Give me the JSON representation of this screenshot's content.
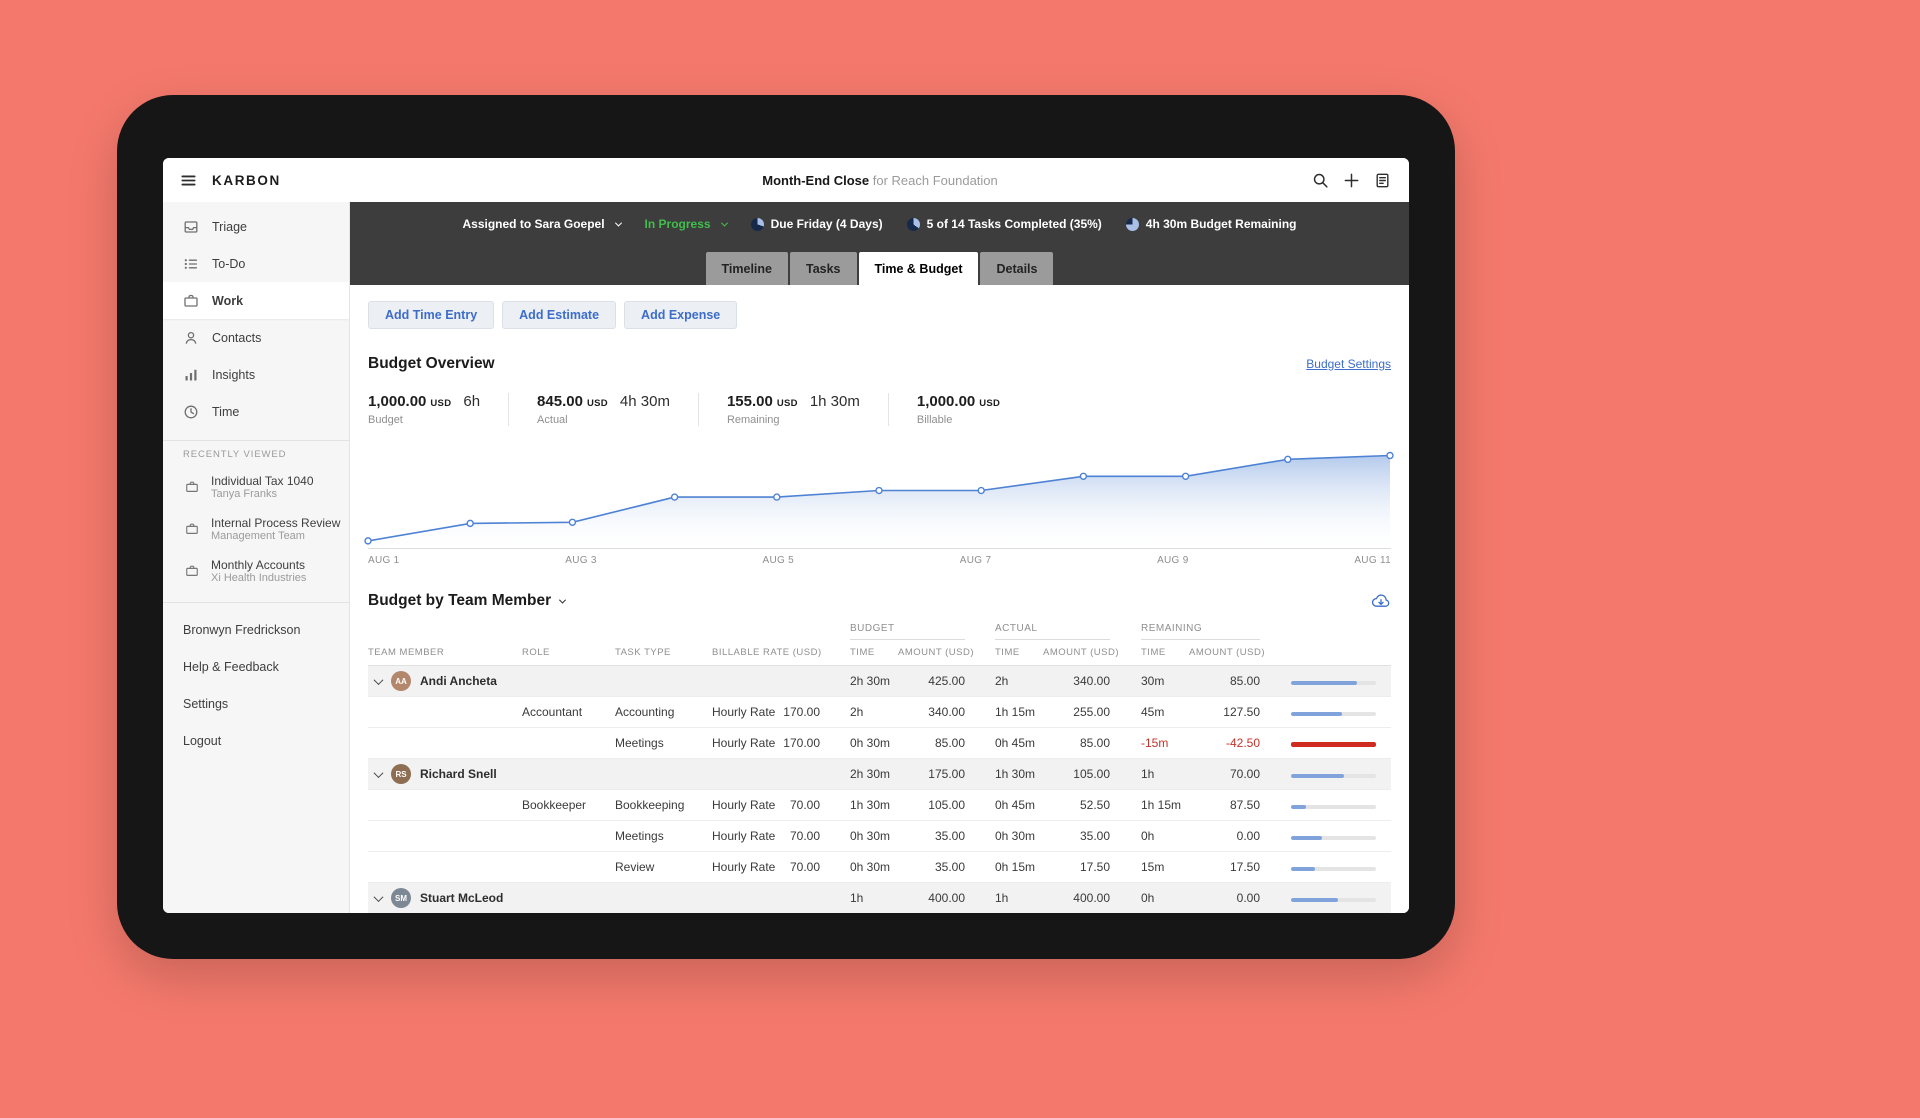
{
  "topbar": {
    "logo": "KARBON",
    "title_bold": "Month-End Close",
    "title_rest": " for Reach Foundation"
  },
  "sidebar": {
    "items": [
      {
        "label": "Triage",
        "icon": "triage-icon",
        "active": false
      },
      {
        "label": "To-Do",
        "icon": "todo-icon",
        "active": false
      },
      {
        "label": "Work",
        "icon": "work-icon",
        "active": true
      },
      {
        "label": "Contacts",
        "icon": "contacts-icon",
        "active": false
      },
      {
        "label": "Insights",
        "icon": "insights-icon",
        "active": false
      },
      {
        "label": "Time",
        "icon": "time-icon",
        "active": false
      }
    ],
    "recent_header": "RECENTLY VIEWED",
    "recent": [
      {
        "title": "Individual Tax 1040",
        "subtitle": "Tanya Franks"
      },
      {
        "title": "Internal Process Review",
        "subtitle": "Management Team"
      },
      {
        "title": "Monthly Accounts",
        "subtitle": "Xi Health Industries"
      }
    ],
    "footer": [
      "Bronwyn Fredrickson",
      "Help & Feedback",
      "Settings",
      "Logout"
    ]
  },
  "statusbar": {
    "assigned_label": "Assigned to Sara Goepel",
    "status_label": "In Progress",
    "status_color": "#41BE4C",
    "due": {
      "label": "Due Friday (4 Days)",
      "pct": 30
    },
    "tasks": {
      "label": "5 of 14 Tasks Completed (35%)",
      "pct": 35
    },
    "budget": {
      "label": "4h 30m Budget Remaining",
      "pct": 75
    }
  },
  "tabs": [
    {
      "label": "Timeline",
      "active": false
    },
    {
      "label": "Tasks",
      "active": false
    },
    {
      "label": "Time & Budget",
      "active": true
    },
    {
      "label": "Details",
      "active": false
    }
  ],
  "actions": [
    "Add Time Entry",
    "Add Estimate",
    "Add Expense"
  ],
  "budget_overview": {
    "title": "Budget Overview",
    "settings_link": "Budget Settings",
    "stats": [
      {
        "amount": "1,000.00",
        "currency": "USD",
        "time": "6h",
        "label": "Budget"
      },
      {
        "amount": "845.00",
        "currency": "USD",
        "time": "4h 30m",
        "label": "Actual"
      },
      {
        "amount": "155.00",
        "currency": "USD",
        "time": "1h 30m",
        "label": "Remaining"
      },
      {
        "amount": "1,000.00",
        "currency": "USD",
        "time": "",
        "label": "Billable"
      }
    ]
  },
  "chart_data": {
    "type": "area",
    "title": "Budget burn over time",
    "x": [
      1,
      2,
      3,
      4,
      5,
      6,
      7,
      8,
      9,
      10,
      11
    ],
    "values": [
      65,
      225,
      235,
      465,
      465,
      525,
      525,
      655,
      655,
      810,
      845
    ],
    "tick_labels": [
      "AUG 1",
      "AUG 3",
      "AUG 5",
      "AUG 7",
      "AUG 9",
      "AUG 11"
    ],
    "ylim": [
      0,
      950
    ],
    "line_color": "#4E82D4",
    "fill_color_top": "#A6C0E8",
    "grid": false,
    "legend": "none"
  },
  "team_section": {
    "title": "Budget by Team Member",
    "group_headers": [
      "BUDGET",
      "ACTUAL",
      "REMAINING"
    ],
    "columns": [
      "TEAM MEMBER",
      "ROLE",
      "TASK TYPE",
      "BILLABLE RATE (USD)",
      "TIME",
      "AMOUNT (USD)",
      "TIME",
      "AMOUNT (USD)",
      "TIME",
      "AMOUNT (USD)"
    ],
    "rows": [
      {
        "type": "member",
        "name": "Andi Ancheta",
        "initials": "AA",
        "avatar_color": "#B3876B",
        "budget_time": "2h 30m",
        "budget_amount": "425.00",
        "actual_time": "2h",
        "actual_amount": "340.00",
        "remaining_time": "30m",
        "remaining_amount": "85.00",
        "negative": false,
        "bar_pct": 78,
        "bar_color": "blue"
      },
      {
        "type": "detail",
        "role": "Accountant",
        "task_type": "Accounting",
        "rate_type": "Hourly Rate",
        "rate": "170.00",
        "budget_time": "2h",
        "budget_amount": "340.00",
        "actual_time": "1h 15m",
        "actual_amount": "255.00",
        "remaining_time": "45m",
        "remaining_amount": "127.50",
        "negative": false,
        "bar_pct": 60,
        "bar_color": "blue"
      },
      {
        "type": "detail",
        "role": "",
        "task_type": "Meetings",
        "rate_type": "Hourly Rate",
        "rate": "170.00",
        "budget_time": "0h 30m",
        "budget_amount": "85.00",
        "actual_time": "0h 45m",
        "actual_amount": "85.00",
        "remaining_time": "-15m",
        "remaining_amount": "-42.50",
        "negative": true,
        "bar_pct": 100,
        "bar_color": "red"
      },
      {
        "type": "member",
        "name": "Richard Snell",
        "initials": "RS",
        "avatar_color": "#8E6E52",
        "budget_time": "2h 30m",
        "budget_amount": "175.00",
        "actual_time": "1h 30m",
        "actual_amount": "105.00",
        "remaining_time": "1h",
        "remaining_amount": "70.00",
        "negative": false,
        "bar_pct": 62,
        "bar_color": "blue"
      },
      {
        "type": "detail",
        "role": "Bookkeeper",
        "task_type": "Bookkeeping",
        "rate_type": "Hourly Rate",
        "rate": "70.00",
        "budget_time": "1h 30m",
        "budget_amount": "105.00",
        "actual_time": "0h 45m",
        "actual_amount": "52.50",
        "remaining_time": "1h 15m",
        "remaining_amount": "87.50",
        "negative": false,
        "bar_pct": 18,
        "bar_color": "blue"
      },
      {
        "type": "detail",
        "role": "",
        "task_type": "Meetings",
        "rate_type": "Hourly Rate",
        "rate": "70.00",
        "budget_time": "0h 30m",
        "budget_amount": "35.00",
        "actual_time": "0h 30m",
        "actual_amount": "35.00",
        "remaining_time": "0h",
        "remaining_amount": "0.00",
        "negative": false,
        "bar_pct": 36,
        "bar_color": "blue"
      },
      {
        "type": "detail",
        "role": "",
        "task_type": "Review",
        "rate_type": "Hourly Rate",
        "rate": "70.00",
        "budget_time": "0h 30m",
        "budget_amount": "35.00",
        "actual_time": "0h 15m",
        "actual_amount": "17.50",
        "remaining_time": "15m",
        "remaining_amount": "17.50",
        "negative": false,
        "bar_pct": 28,
        "bar_color": "blue"
      },
      {
        "type": "member",
        "name": "Stuart McLeod",
        "initials": "SM",
        "avatar_color": "#7C8894",
        "budget_time": "1h",
        "budget_amount": "400.00",
        "actual_time": "1h",
        "actual_amount": "400.00",
        "remaining_time": "0h",
        "remaining_amount": "0.00",
        "negative": false,
        "bar_pct": 55,
        "bar_color": "blue"
      }
    ]
  }
}
